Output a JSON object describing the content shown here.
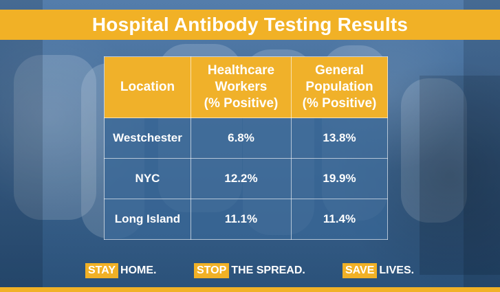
{
  "title": "Hospital Antibody Testing Results",
  "table": {
    "headers": [
      "Location",
      "Healthcare\nWorkers\n(% Positive)",
      "General\nPopulation\n(% Positive)"
    ],
    "rows": [
      {
        "location": "Westchester",
        "healthcare_workers": "6.8%",
        "general_population": "13.8%"
      },
      {
        "location": "NYC",
        "healthcare_workers": "12.2%",
        "general_population": "19.9%"
      },
      {
        "location": "Long Island",
        "healthcare_workers": "11.1%",
        "general_population": "11.4%"
      }
    ]
  },
  "slogan": [
    {
      "key": "STAY",
      "rest": "HOME."
    },
    {
      "key": "STOP",
      "rest": "THE SPREAD."
    },
    {
      "key": "SAVE",
      "rest": "LIVES."
    }
  ],
  "colors": {
    "accent": "#f1b126",
    "background": "#3a6797",
    "text": "#ffffff"
  }
}
